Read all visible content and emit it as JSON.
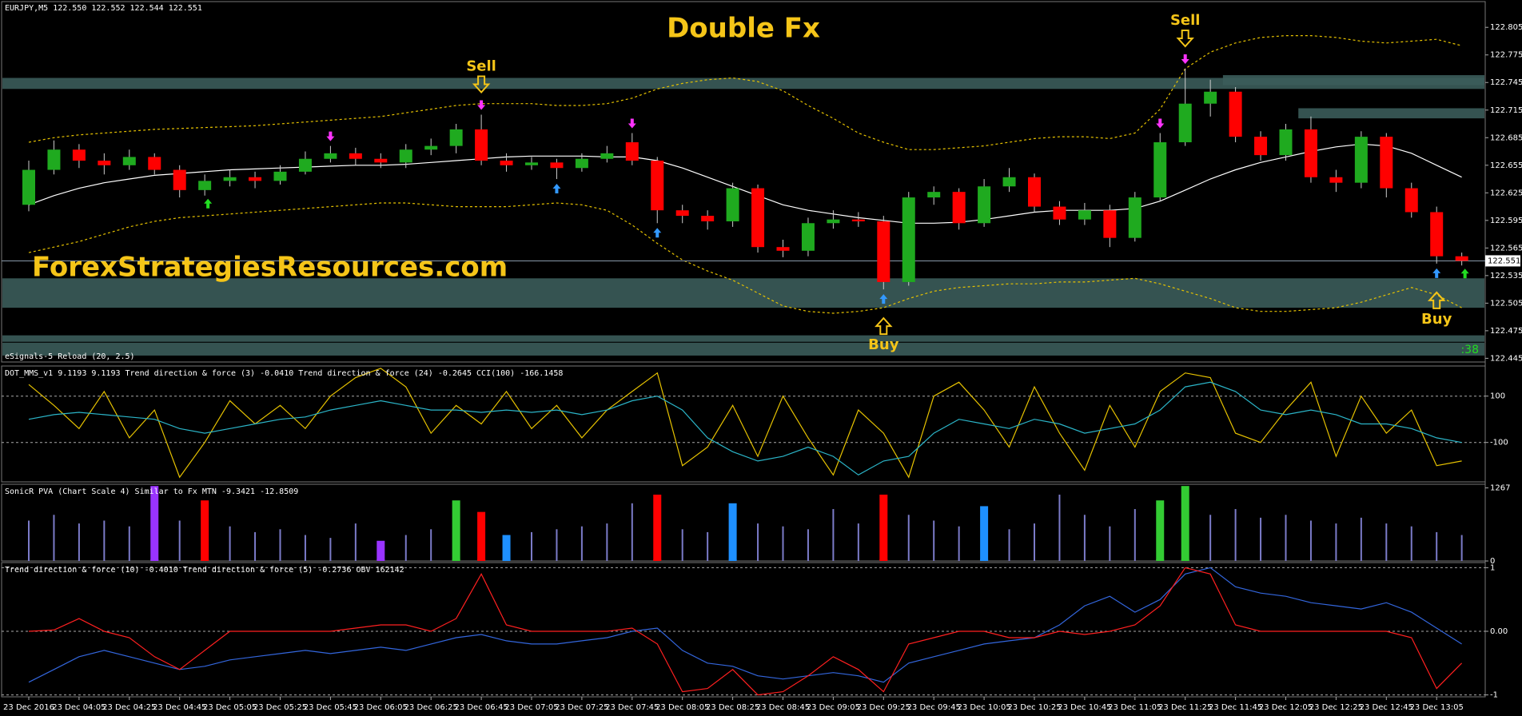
{
  "chart_data": [
    {
      "type": "candlestick",
      "subtitle": "EURJPY,M5  122.550 122.552 122.544 122.551",
      "title": "Double Fx",
      "watermark": "ForexStrategiesResources.com",
      "indicator_label": "eSignals-5 Reload (20, 2.5)",
      "timer": ":38",
      "categories": [
        "23 Dec 2016",
        null,
        "23 Dec 04:05",
        null,
        "23 Dec 04:25",
        null,
        "23 Dec 04:45",
        null,
        "23 Dec 05:05",
        null,
        "23 Dec 05:25",
        null,
        "23 Dec 05:45",
        null,
        "23 Dec 06:05",
        null,
        "23 Dec 06:25",
        null,
        "23 Dec 06:45",
        null,
        "23 Dec 07:05",
        null,
        "23 Dec 07:25",
        null,
        "23 Dec 07:45",
        null,
        "23 Dec 08:05",
        null,
        "23 Dec 08:25",
        null,
        "23 Dec 08:45",
        null,
        "23 Dec 09:05",
        null,
        "23 Dec 09:25",
        null,
        "23 Dec 09:45",
        null,
        "23 Dec 10:05",
        null,
        "23 Dec 10:25",
        null,
        "23 Dec 10:45",
        null,
        "23 Dec 11:05",
        null,
        "23 Dec 11:25",
        null,
        "23 Dec 11:45",
        null,
        "23 Dec 12:05",
        null,
        "23 Dec 12:25",
        null,
        "23 Dec 12:45",
        null,
        "23 Dec 13:05",
        null
      ],
      "open": [
        122.612,
        122.65,
        122.672,
        122.66,
        122.655,
        122.664,
        122.65,
        122.628,
        122.638,
        122.642,
        122.638,
        122.648,
        122.662,
        122.668,
        122.662,
        122.658,
        122.672,
        122.676,
        122.694,
        122.66,
        122.655,
        122.658,
        122.652,
        122.662,
        122.68,
        122.66,
        122.606,
        122.6,
        122.594,
        122.63,
        122.566,
        122.562,
        122.592,
        122.596,
        122.594,
        122.528,
        122.62,
        122.626,
        122.592,
        122.632,
        122.642,
        122.61,
        122.596,
        122.606,
        122.576,
        122.62,
        122.68,
        122.722,
        122.735,
        122.686,
        122.666,
        122.694,
        122.642,
        122.636,
        122.686,
        122.63,
        122.604,
        122.556
      ],
      "high": [
        122.66,
        122.682,
        122.678,
        122.668,
        122.672,
        122.668,
        122.655,
        122.645,
        122.65,
        122.648,
        122.655,
        122.67,
        122.676,
        122.674,
        122.668,
        122.678,
        122.684,
        122.7,
        122.71,
        122.668,
        122.664,
        122.662,
        122.668,
        122.676,
        122.69,
        122.664,
        122.612,
        122.606,
        122.636,
        122.634,
        122.574,
        122.598,
        122.606,
        122.604,
        122.6,
        122.626,
        122.632,
        122.63,
        122.64,
        122.652,
        122.646,
        122.616,
        122.614,
        122.612,
        122.626,
        122.69,
        122.76,
        122.748,
        122.74,
        122.692,
        122.7,
        122.708,
        122.65,
        122.692,
        122.69,
        122.636,
        122.61,
        122.56
      ],
      "low": [
        122.605,
        122.645,
        122.652,
        122.645,
        122.65,
        122.645,
        122.62,
        122.622,
        122.632,
        122.63,
        122.634,
        122.645,
        122.658,
        122.655,
        122.652,
        122.652,
        122.666,
        122.668,
        122.655,
        122.648,
        122.65,
        122.64,
        122.648,
        122.658,
        122.655,
        122.592,
        122.592,
        122.585,
        122.588,
        122.56,
        122.555,
        122.556,
        122.586,
        122.588,
        122.52,
        122.524,
        122.612,
        122.585,
        122.588,
        122.626,
        122.604,
        122.59,
        122.59,
        122.566,
        122.572,
        122.616,
        122.676,
        122.708,
        122.68,
        122.66,
        122.66,
        122.636,
        122.626,
        122.63,
        122.62,
        122.598,
        122.548,
        122.546
      ],
      "close": [
        122.65,
        122.672,
        122.66,
        122.655,
        122.664,
        122.65,
        122.628,
        122.638,
        122.642,
        122.638,
        122.648,
        122.662,
        122.668,
        122.662,
        122.658,
        122.672,
        122.676,
        122.694,
        122.66,
        122.655,
        122.658,
        122.652,
        122.662,
        122.668,
        122.66,
        122.606,
        122.6,
        122.594,
        122.63,
        122.566,
        122.562,
        122.592,
        122.596,
        122.594,
        122.528,
        122.62,
        122.626,
        122.592,
        122.632,
        122.642,
        122.61,
        122.596,
        122.606,
        122.576,
        122.62,
        122.68,
        122.722,
        122.735,
        122.686,
        122.666,
        122.694,
        122.642,
        122.636,
        122.686,
        122.63,
        122.604,
        122.556,
        122.551
      ],
      "up_color": "#1faa1f",
      "down_color": "#ff0000",
      "wick_color": "#cccccc",
      "series": [
        {
          "color": "#ffffff",
          "dashed": false,
          "values": [
            122.612,
            122.622,
            122.63,
            122.636,
            122.64,
            122.644,
            122.646,
            122.648,
            122.65,
            122.651,
            122.652,
            122.653,
            122.654,
            122.655,
            122.655,
            122.656,
            122.658,
            122.66,
            122.662,
            122.664,
            122.665,
            122.665,
            122.665,
            122.664,
            122.664,
            122.66,
            122.652,
            122.642,
            122.632,
            122.622,
            122.612,
            122.606,
            122.602,
            122.598,
            122.595,
            122.592,
            122.592,
            122.593,
            122.596,
            122.6,
            122.604,
            122.606,
            122.606,
            122.606,
            122.608,
            122.616,
            122.628,
            122.64,
            122.65,
            122.658,
            122.664,
            122.67,
            122.675,
            122.678,
            122.676,
            122.668,
            122.655,
            122.642
          ]
        },
        {
          "color": "#e6c200",
          "dashed": true,
          "values": [
            122.68,
            122.685,
            122.688,
            122.69,
            122.692,
            122.694,
            122.695,
            122.696,
            122.697,
            122.698,
            122.7,
            122.702,
            122.704,
            122.706,
            122.708,
            122.712,
            122.716,
            122.72,
            122.722,
            122.722,
            122.722,
            122.72,
            122.72,
            122.722,
            122.728,
            122.738,
            122.744,
            122.748,
            122.75,
            122.746,
            122.736,
            122.72,
            122.706,
            122.69,
            122.68,
            122.672,
            122.672,
            122.674,
            122.676,
            122.68,
            122.684,
            122.686,
            122.686,
            122.684,
            122.69,
            122.716,
            122.76,
            122.778,
            122.788,
            122.794,
            122.796,
            122.796,
            122.794,
            122.79,
            122.788,
            122.79,
            122.792,
            122.785
          ]
        },
        {
          "color": "#e6c200",
          "dashed": true,
          "values": [
            122.56,
            122.566,
            122.572,
            122.58,
            122.588,
            122.594,
            122.598,
            122.6,
            122.602,
            122.604,
            122.606,
            122.608,
            122.61,
            122.612,
            122.614,
            122.614,
            122.612,
            122.61,
            122.61,
            122.61,
            122.612,
            122.614,
            122.612,
            122.606,
            122.59,
            122.57,
            122.552,
            122.54,
            122.53,
            122.516,
            122.502,
            122.496,
            122.494,
            122.496,
            122.5,
            122.51,
            122.518,
            122.522,
            122.524,
            122.526,
            122.526,
            122.528,
            122.528,
            122.53,
            122.532,
            122.526,
            122.518,
            122.51,
            122.5,
            122.496,
            122.496,
            122.498,
            122.5,
            122.506,
            122.514,
            122.522,
            122.514,
            122.5
          ]
        }
      ],
      "zones": [
        {
          "from": 122.738,
          "to": 122.75,
          "start": 0
        },
        {
          "from": 122.742,
          "to": 122.753,
          "start": 48
        },
        {
          "from": 122.706,
          "to": 122.717,
          "start": 51
        },
        {
          "from": 122.5,
          "to": 122.532,
          "start": 0
        },
        {
          "from": 122.463,
          "to": 122.47,
          "start": 0
        },
        {
          "from": 122.448,
          "to": 122.462,
          "start": 0
        }
      ],
      "zone_color": "#3b5c5a",
      "sell_signals": [
        12,
        18,
        24,
        45,
        46
      ],
      "sell_color": "#ff33ff",
      "buy_signals": [
        21,
        25,
        34,
        56
      ],
      "buy_color": "#3399ff",
      "up_signals": [
        7,
        57
      ],
      "up_signal_color": "#22dd22",
      "annotations": [
        {
          "text": "Sell",
          "at": 18,
          "side": "above"
        },
        {
          "text": "Sell",
          "at": 46,
          "side": "above"
        },
        {
          "text": "Buy",
          "at": 34,
          "side": "below"
        },
        {
          "text": "Buy",
          "at": 56,
          "side": "below"
        }
      ],
      "last_price": 122.551,
      "ylim": [
        122.441,
        122.833
      ],
      "yticks": [
        122.805,
        122.775,
        122.745,
        122.715,
        122.685,
        122.655,
        122.625,
        122.595,
        122.565,
        122.535,
        122.505,
        122.475,
        122.445
      ]
    },
    {
      "type": "line",
      "label": "DOT_MMS_v1 9.1193 9.1193  Trend direction & force (3) -0.0410  Trend direction & force (24) -0.2645  CCI(100) -166.1458",
      "series": [
        {
          "color": "#e6c200",
          "dashed": false,
          "values": [
            150,
            60,
            -40,
            120,
            -80,
            40,
            -250,
            -100,
            80,
            -20,
            60,
            -40,
            100,
            180,
            220,
            140,
            -60,
            60,
            -20,
            120,
            -40,
            60,
            -80,
            40,
            120,
            200,
            -200,
            -120,
            60,
            -160,
            100,
            -80,
            -240,
            40,
            -60,
            -250,
            100,
            160,
            40,
            -120,
            140,
            -60,
            -220,
            60,
            -120,
            120,
            200,
            180,
            -60,
            -100,
            40,
            160,
            -160,
            100,
            -60,
            40,
            -200,
            -180
          ]
        },
        {
          "color": "#2bb5c8",
          "dashed": false,
          "values": [
            0,
            20,
            30,
            20,
            10,
            0,
            -40,
            -60,
            -40,
            -20,
            0,
            10,
            40,
            60,
            80,
            60,
            40,
            40,
            30,
            40,
            30,
            40,
            20,
            40,
            80,
            100,
            40,
            -80,
            -140,
            -180,
            -160,
            -120,
            -160,
            -240,
            -180,
            -160,
            -60,
            0,
            -20,
            -40,
            0,
            -20,
            -60,
            -40,
            -20,
            40,
            140,
            160,
            120,
            40,
            20,
            40,
            20,
            -20,
            -20,
            -40,
            -80,
            -100
          ]
        }
      ],
      "grid": true,
      "ylim": [
        -270,
        230
      ],
      "yticks": [
        100,
        -100
      ]
    },
    {
      "type": "bar",
      "label": "SonicR PVA  (Chart Scale 4)  Similar to Fx MTN  -9.3421 -12.8509",
      "color": "#7b7bc8",
      "values": [
        700,
        800,
        650,
        700,
        600,
        1300,
        700,
        1050,
        600,
        500,
        550,
        450,
        400,
        650,
        350,
        450,
        550,
        1050,
        850,
        450,
        500,
        550,
        600,
        650,
        1000,
        1150,
        550,
        500,
        1000,
        650,
        600,
        550,
        900,
        650,
        1150,
        800,
        700,
        600,
        950,
        550,
        650,
        1150,
        800,
        600,
        900,
        1050,
        1300,
        800,
        900,
        750,
        800,
        700,
        650,
        750,
        650,
        600,
        500,
        450
      ],
      "highlights": [
        {
          "color": "#9933ff",
          "indices": [
            5,
            14
          ]
        },
        {
          "color": "#ff0000",
          "indices": [
            7,
            18,
            25,
            34
          ]
        },
        {
          "color": "#33cc33",
          "indices": [
            17,
            45,
            46
          ]
        },
        {
          "color": "#1e90ff",
          "indices": [
            19,
            28,
            38
          ]
        }
      ],
      "ylim": [
        0,
        1330
      ],
      "yticks": [
        1267,
        0
      ]
    },
    {
      "type": "line",
      "label": "Trend direction & force (10) -0.4010  Trend direction & force (5) -0.2736  OBV 162142",
      "series": [
        {
          "color": "#3366dd",
          "dashed": false,
          "values": [
            -0.8,
            -0.6,
            -0.4,
            -0.3,
            -0.4,
            -0.5,
            -0.6,
            -0.55,
            -0.45,
            -0.4,
            -0.35,
            -0.3,
            -0.35,
            -0.3,
            -0.25,
            -0.3,
            -0.2,
            -0.1,
            -0.05,
            -0.15,
            -0.2,
            -0.2,
            -0.15,
            -0.1,
            0,
            0.05,
            -0.3,
            -0.5,
            -0.55,
            -0.7,
            -0.75,
            -0.7,
            -0.65,
            -0.7,
            -0.8,
            -0.5,
            -0.4,
            -0.3,
            -0.2,
            -0.15,
            -0.1,
            0.1,
            0.4,
            0.55,
            0.3,
            0.5,
            0.9,
            1,
            0.7,
            0.6,
            0.55,
            0.45,
            0.4,
            0.35,
            0.45,
            0.3,
            0.05,
            -0.2
          ]
        },
        {
          "color": "#ff2020",
          "dashed": false,
          "values": [
            0,
            0.02,
            0.2,
            0,
            -0.1,
            -0.4,
            -0.6,
            -0.3,
            0,
            0,
            0,
            0,
            0,
            0.05,
            0.1,
            0.1,
            0,
            0.2,
            0.9,
            0.1,
            0,
            0,
            0,
            0,
            0.05,
            -0.2,
            -0.95,
            -0.9,
            -0.6,
            -1,
            -0.95,
            -0.7,
            -0.4,
            -0.6,
            -0.95,
            -0.2,
            -0.1,
            0,
            0,
            -0.1,
            -0.1,
            0,
            -0.05,
            0,
            0.1,
            0.4,
            1,
            0.9,
            0.1,
            0,
            0,
            0,
            0,
            0,
            0,
            -0.1,
            -0.9,
            -0.5
          ]
        }
      ],
      "grid": true,
      "ylim": [
        -1.03,
        1.08
      ],
      "yticks": [
        1,
        {
          "value": 0,
          "label": "0.00"
        },
        -1
      ]
    }
  ]
}
